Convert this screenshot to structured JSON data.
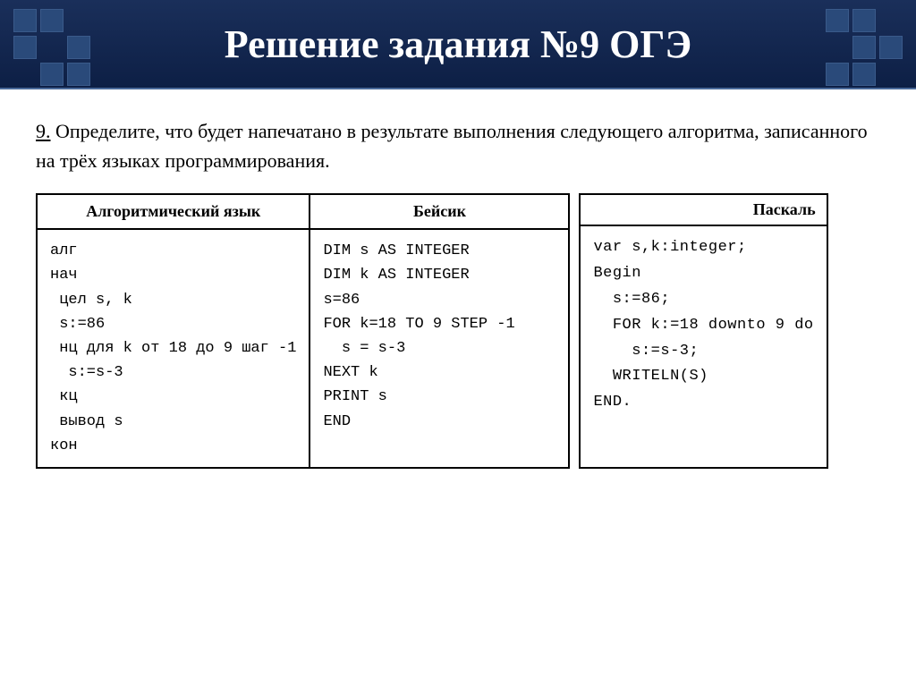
{
  "header": {
    "title": "Решение задания №9 ОГЭ",
    "background_gradient": [
      "#1a2f5a",
      "#0d1f45"
    ],
    "title_color": "#ffffff",
    "title_fontsize": 44,
    "deco_square_color": "#2a4a7a",
    "deco_left_pattern": [
      1,
      1,
      0,
      1,
      0,
      1,
      0,
      1,
      1
    ],
    "deco_right_pattern": [
      1,
      1,
      0,
      0,
      1,
      1,
      1,
      1,
      0
    ]
  },
  "question": {
    "number": "9.",
    "text": "Определите, что будет напечатано в результате выполнения следующего алгоритма, записанного на трёх языках программирования.",
    "fontsize": 22,
    "color": "#000000"
  },
  "table": {
    "border_color": "#000000",
    "header_fontsize": 18,
    "code_fontsize": 17,
    "code_font": "Courier New",
    "columns": {
      "alg": {
        "header": "Алгоритмический\nязык",
        "code": "алг\nнач\n цел s, k\n s:=86\n нц для k от 18 до 9 шаг -1\n  s:=s-3\n кц\n вывод s\nкон"
      },
      "basic": {
        "header": "Бейсик",
        "code": "DIM s AS INTEGER\nDIM k AS INTEGER\ns=86\nFOR k=18 TO 9 STEP -1\n  s = s-3\nNEXT k\nPRINT s\nEND"
      }
    }
  },
  "pascal": {
    "header": "Паскаль",
    "code": "var s,k:integer;\nBegin\n  s:=86;\n  FOR k:=18 downto 9 do\n    s:=s-3;\n  WRITELN(S)\nEND."
  }
}
